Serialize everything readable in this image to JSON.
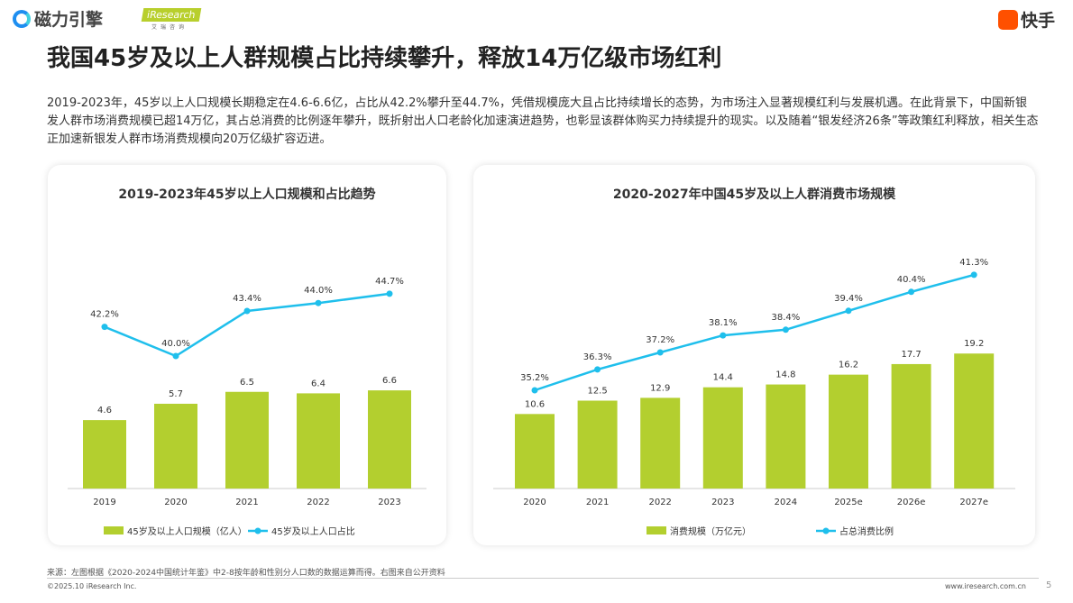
{
  "header": {
    "logo_left": "磁力引擎",
    "logo_iresearch": "iResearch",
    "logo_iresearch_sub": "艾瑞咨询",
    "logo_right": "快手"
  },
  "title": "我国45岁及以上人群规模占比持续攀升，释放14万亿级市场红利",
  "intro": "2019-2023年，45岁以上人口规模长期稳定在4.6-6.6亿，占比从42.2%攀升至44.7%，凭借规模庞大且占比持续增长的态势，为市场注入显著规模红利与发展机遇。在此背景下，中国新银发人群市场消费规模已超14万亿，其占总消费的比例逐年攀升，既折射出人口老龄化加速演进趋势，也彰显该群体购买力持续提升的现实。以及随着“银发经济26条”等政策红利释放，相关生态正加速新银发人群市场消费规模向20万亿级扩容迈进。",
  "colors": {
    "bar": "#b3cf2f",
    "line": "#1fbfec"
  },
  "chart_data": [
    {
      "type": "bar+line",
      "title": "2019-2023年45岁以上人口规模和占比趋势",
      "categories": [
        "2019",
        "2020",
        "2021",
        "2022",
        "2023"
      ],
      "series": [
        {
          "name": "45岁及以上人口规模（亿人）",
          "type": "bar",
          "values": [
            4.6,
            5.7,
            6.5,
            6.4,
            6.6
          ],
          "labels": [
            "4.6",
            "5.7",
            "6.5",
            "6.4",
            "6.6"
          ]
        },
        {
          "name": "45岁及以上人口占比",
          "type": "line",
          "values": [
            42.2,
            40.0,
            43.4,
            44.0,
            44.7
          ],
          "labels": [
            "42.2%",
            "40.0%",
            "43.4%",
            "44.0%",
            "44.7%"
          ]
        }
      ],
      "legend": "bottom",
      "grid": false
    },
    {
      "type": "bar+line",
      "title": "2020-2027年中国45岁及以上人群消费市场规模",
      "categories": [
        "2020",
        "2021",
        "2022",
        "2023",
        "2024",
        "2025e",
        "2026e",
        "2027e"
      ],
      "series": [
        {
          "name": "消费规模（万亿元）",
          "type": "bar",
          "values": [
            10.6,
            12.5,
            12.9,
            14.4,
            14.8,
            16.2,
            17.7,
            19.2
          ],
          "labels": [
            "10.6",
            "12.5",
            "12.9",
            "14.4",
            "14.8",
            "16.2",
            "17.7",
            "19.2"
          ]
        },
        {
          "name": "占总消费比例",
          "type": "line",
          "values": [
            35.2,
            36.3,
            37.2,
            38.1,
            38.4,
            39.4,
            40.4,
            41.3
          ],
          "labels": [
            "35.2%",
            "36.3%",
            "37.2%",
            "38.1%",
            "38.4%",
            "39.4%",
            "40.4%",
            "41.3%"
          ]
        }
      ],
      "legend": "bottom",
      "grid": false
    }
  ],
  "footer": {
    "source": "来源：左图根据《2020-2024中国统计年鉴》中2-8按年龄和性别分人口数的数据运算而得。右图来自公开资料",
    "copyright": "©2025.10 iResearch Inc.",
    "website": "www.iresearch.com.cn",
    "page": "5"
  }
}
